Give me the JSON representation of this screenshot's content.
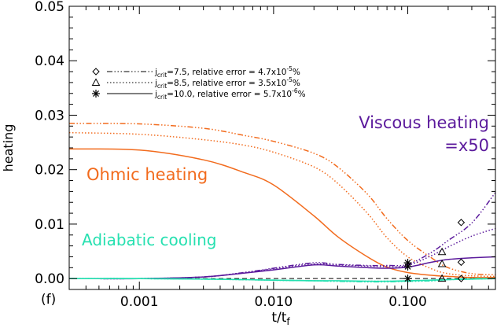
{
  "chart_data": {
    "type": "line",
    "panel_label": "(f)",
    "xlabel": "t/t",
    "xlabel_sub": "f",
    "ylabel": "heating",
    "xscale": "log",
    "xlim": [
      0.0003,
      0.45
    ],
    "ylim": [
      -0.002,
      0.05
    ],
    "xticks": [
      0.001,
      0.01,
      0.1
    ],
    "xtick_labels": [
      "0.001",
      "0.010",
      "0.100"
    ],
    "yticks": [
      0.0,
      0.01,
      0.02,
      0.03,
      0.04,
      0.05
    ],
    "ytick_labels": [
      "0.00",
      "0.01",
      "0.02",
      "0.03",
      "0.04",
      "0.05"
    ],
    "annotations": {
      "ohmic": "Ohmic heating",
      "viscous": "Viscous heating",
      "viscous_scale": "=x50",
      "adiabatic": "Adiabatic cooling"
    },
    "legend": [
      {
        "marker": "◇",
        "prefix": "j",
        "sub": "crit",
        "value": "=7.5, relative error = 4.7x10",
        "exp": "-5",
        "suffix": "%",
        "style": "dash-triple-dot"
      },
      {
        "marker": "△",
        "prefix": "j",
        "sub": "crit",
        "value": "=8.5, relative error = 3.5x10",
        "exp": "-5",
        "suffix": "%",
        "style": "dotted"
      },
      {
        "marker": "✱",
        "prefix": "j",
        "sub": "crit",
        "value": "=10.0, relative error = 5.7x10",
        "exp": "-6",
        "suffix": "%",
        "style": "solid"
      }
    ],
    "colors": {
      "ohmic": "#f26b1d",
      "viscous": "#5b1a9c",
      "adiabatic": "#26e0b0",
      "axis": "#000000"
    },
    "x": [
      0.0003,
      0.001,
      0.003,
      0.006,
      0.01,
      0.02,
      0.03,
      0.05,
      0.07,
      0.1,
      0.15,
      0.2,
      0.3,
      0.45
    ],
    "series": [
      {
        "name": "Ohmic heating, jcrit=7.5",
        "group": "ohmic",
        "style": "dash-triple-dot",
        "values": [
          0.0285,
          0.0284,
          0.0276,
          0.0263,
          0.0252,
          0.023,
          0.0205,
          0.0155,
          0.011,
          0.007,
          0.0038,
          0.002,
          0.0009,
          0.0007
        ]
      },
      {
        "name": "Ohmic heating, jcrit=8.5",
        "group": "ohmic",
        "style": "dotted",
        "values": [
          0.0268,
          0.0265,
          0.0255,
          0.0245,
          0.0232,
          0.0205,
          0.0175,
          0.012,
          0.0075,
          0.004,
          0.0018,
          0.0009,
          0.0005,
          0.0004
        ]
      },
      {
        "name": "Ohmic heating, jcrit=10.0",
        "group": "ohmic",
        "style": "solid",
        "values": [
          0.0238,
          0.0236,
          0.0218,
          0.0195,
          0.0172,
          0.0115,
          0.0077,
          0.004,
          0.0021,
          0.0011,
          0.0006,
          0.0004,
          0.0002,
          0.0002
        ]
      },
      {
        "name": "Viscous heating x50, jcrit=7.5",
        "group": "viscous",
        "style": "dash-triple-dot",
        "values": [
          0.0,
          0.0,
          0.0003,
          0.0011,
          0.0019,
          0.0029,
          0.0026,
          0.0024,
          0.0024,
          0.0026,
          0.0048,
          0.007,
          0.0102,
          0.0158
        ]
      },
      {
        "name": "Viscous heating x50, jcrit=8.5",
        "group": "viscous",
        "style": "dotted",
        "values": [
          0.0,
          0.0,
          0.0003,
          0.0011,
          0.0018,
          0.0027,
          0.0025,
          0.0023,
          0.0022,
          0.0024,
          0.0042,
          0.0058,
          0.0078,
          0.0092
        ]
      },
      {
        "name": "Viscous heating x50, jcrit=10.0",
        "group": "viscous",
        "style": "solid",
        "values": [
          0.0,
          0.0,
          0.0003,
          0.001,
          0.0016,
          0.0025,
          0.0023,
          0.002,
          0.0019,
          0.0021,
          0.003,
          0.0035,
          0.0038,
          0.004
        ]
      },
      {
        "name": "Adiabatic cooling, jcrit=7.5",
        "group": "adiabatic",
        "style": "dash-triple-dot",
        "values": [
          0.0,
          0.0,
          -0.0001,
          -0.0002,
          -0.0003,
          -0.0004,
          -0.0005,
          -0.0006,
          -0.0006,
          -0.0005,
          -0.0004,
          -0.0002,
          0.0,
          0.0
        ]
      },
      {
        "name": "Adiabatic cooling, jcrit=8.5",
        "group": "adiabatic",
        "style": "dotted",
        "values": [
          0.0,
          0.0,
          -0.0001,
          -0.0002,
          -0.0003,
          -0.0004,
          -0.0005,
          -0.0005,
          -0.0005,
          -0.0005,
          -0.0004,
          -0.0002,
          -0.0001,
          0.0
        ]
      },
      {
        "name": "Adiabatic cooling, jcrit=10.0",
        "group": "adiabatic",
        "style": "solid",
        "values": [
          0.0,
          0.0,
          -0.0001,
          -0.0002,
          -0.0003,
          -0.0004,
          -0.0004,
          -0.0005,
          -0.0005,
          -0.0004,
          -0.0003,
          -0.0002,
          -0.0001,
          0.0
        ]
      }
    ],
    "markers": [
      {
        "symbol": "asterisk",
        "x": 0.1,
        "y": 0.0029
      },
      {
        "symbol": "asterisk",
        "x": 0.1,
        "y": 0.0022
      },
      {
        "symbol": "asterisk",
        "x": 0.1,
        "y": 0.0
      },
      {
        "symbol": "triangle",
        "x": 0.18,
        "y": 0.0049
      },
      {
        "symbol": "triangle",
        "x": 0.18,
        "y": 0.0027
      },
      {
        "symbol": "triangle",
        "x": 0.18,
        "y": 0.0
      },
      {
        "symbol": "diamond",
        "x": 0.25,
        "y": 0.0103
      },
      {
        "symbol": "diamond",
        "x": 0.25,
        "y": 0.003
      },
      {
        "symbol": "diamond",
        "x": 0.25,
        "y": 0.0
      }
    ],
    "reference_line": {
      "y": 0.0,
      "style": "dashed"
    }
  }
}
